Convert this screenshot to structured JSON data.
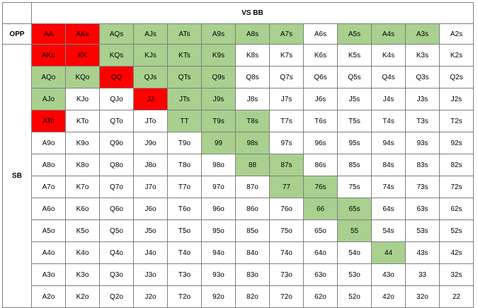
{
  "header": {
    "title": "VS  BB"
  },
  "labels": {
    "opp": "OPP",
    "sb": "SB"
  },
  "colors": {
    "red": "#ff0000",
    "green": "#a9d08e",
    "white": "#ffffff"
  },
  "grid": [
    [
      "AA",
      "AKs",
      "AQs",
      "AJs",
      "ATs",
      "A9s",
      "A8s",
      "A7s",
      "A6s",
      "A5s",
      "A4s",
      "A3s",
      "A2s"
    ],
    [
      "AKo",
      "KK",
      "KQs",
      "KJs",
      "KTs",
      "K9s",
      "K8s",
      "K7s",
      "K6s",
      "K5s",
      "K4s",
      "K3s",
      "K2s"
    ],
    [
      "AQo",
      "KQo",
      "QQ",
      "QJs",
      "QTs",
      "Q9s",
      "Q8s",
      "Q7s",
      "Q6s",
      "Q5s",
      "Q4s",
      "Q3s",
      "Q2s"
    ],
    [
      "AJo",
      "KJo",
      "QJo",
      "JJ",
      "JTs",
      "J9s",
      "J8s",
      "J7s",
      "J6s",
      "J5s",
      "J4s",
      "J3s",
      "J2s"
    ],
    [
      "ATo",
      "KTo",
      "QTo",
      "JTo",
      "TT",
      "T9s",
      "T8s",
      "T7s",
      "T6s",
      "T5s",
      "T4s",
      "T3s",
      "T2s"
    ],
    [
      "A9o",
      "K9o",
      "Q9o",
      "J9o",
      "T9o",
      "99",
      "98s",
      "97s",
      "96s",
      "95s",
      "94s",
      "93s",
      "92s"
    ],
    [
      "A8o",
      "K8o",
      "Q8o",
      "J8o",
      "T8o",
      "98o",
      "88",
      "87s",
      "86s",
      "85s",
      "84s",
      "83s",
      "82s"
    ],
    [
      "A7o",
      "K7o",
      "Q7o",
      "J7o",
      "T7o",
      "97o",
      "87o",
      "77",
      "76s",
      "75s",
      "74s",
      "73s",
      "72s"
    ],
    [
      "A6o",
      "K6o",
      "Q6o",
      "J6o",
      "T6o",
      "96o",
      "86o",
      "76o",
      "66",
      "65s",
      "64s",
      "63s",
      "62s"
    ],
    [
      "A5o",
      "K5o",
      "Q5o",
      "J5o",
      "T5o",
      "95o",
      "85o",
      "75o",
      "65o",
      "55",
      "54s",
      "53s",
      "52s"
    ],
    [
      "A4o",
      "K4o",
      "Q4o",
      "J4o",
      "T4o",
      "94o",
      "84o",
      "74o",
      "64o",
      "54o",
      "44",
      "43s",
      "42s"
    ],
    [
      "A3o",
      "K3o",
      "Q3o",
      "J3o",
      "T3o",
      "93o",
      "83o",
      "73o",
      "63o",
      "53o",
      "43o",
      "33",
      "32s"
    ],
    [
      "A2o",
      "K2o",
      "Q2o",
      "J2o",
      "T2o",
      "92o",
      "82o",
      "72o",
      "62o",
      "52o",
      "42o",
      "32o",
      "22"
    ]
  ],
  "cell_colors": [
    [
      "R",
      "R",
      "G",
      "G",
      "G",
      "G",
      "G",
      "G",
      "W",
      "G",
      "G",
      "G",
      "W"
    ],
    [
      "R",
      "R",
      "G",
      "G",
      "G",
      "G",
      "W",
      "W",
      "W",
      "W",
      "W",
      "W",
      "W"
    ],
    [
      "G",
      "G",
      "R",
      "G",
      "G",
      "G",
      "W",
      "W",
      "W",
      "W",
      "W",
      "W",
      "W"
    ],
    [
      "G",
      "W",
      "W",
      "R",
      "G",
      "G",
      "W",
      "W",
      "W",
      "W",
      "W",
      "W",
      "W"
    ],
    [
      "R",
      "W",
      "W",
      "W",
      "G",
      "G",
      "G",
      "W",
      "W",
      "W",
      "W",
      "W",
      "W"
    ],
    [
      "W",
      "W",
      "W",
      "W",
      "W",
      "G",
      "G",
      "W",
      "W",
      "W",
      "W",
      "W",
      "W"
    ],
    [
      "W",
      "W",
      "W",
      "W",
      "W",
      "W",
      "G",
      "G",
      "W",
      "W",
      "W",
      "W",
      "W"
    ],
    [
      "W",
      "W",
      "W",
      "W",
      "W",
      "W",
      "W",
      "G",
      "G",
      "W",
      "W",
      "W",
      "W"
    ],
    [
      "W",
      "W",
      "W",
      "W",
      "W",
      "W",
      "W",
      "W",
      "G",
      "G",
      "W",
      "W",
      "W"
    ],
    [
      "W",
      "W",
      "W",
      "W",
      "W",
      "W",
      "W",
      "W",
      "W",
      "G",
      "W",
      "W",
      "W"
    ],
    [
      "W",
      "W",
      "W",
      "W",
      "W",
      "W",
      "W",
      "W",
      "W",
      "W",
      "G",
      "W",
      "W"
    ],
    [
      "W",
      "W",
      "W",
      "W",
      "W",
      "W",
      "W",
      "W",
      "W",
      "W",
      "W",
      "W",
      "W"
    ],
    [
      "W",
      "W",
      "W",
      "W",
      "W",
      "W",
      "W",
      "W",
      "W",
      "W",
      "W",
      "W",
      "W"
    ]
  ]
}
